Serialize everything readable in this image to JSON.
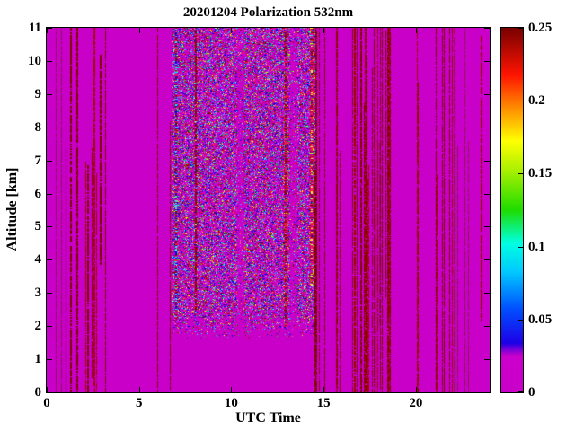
{
  "chart_data": {
    "type": "heatmap",
    "title": "20201204 Polarization 532nm",
    "xlabel": "UTC Time",
    "ylabel": "Altitude [km]",
    "x_range": [
      0,
      24
    ],
    "y_range": [
      0,
      11
    ],
    "x_ticks": [
      0,
      5,
      10,
      15,
      20
    ],
    "y_ticks": [
      0,
      1,
      2,
      3,
      4,
      5,
      6,
      7,
      8,
      9,
      10,
      11
    ],
    "grid": false,
    "legend": "none",
    "colorbar": {
      "position": "right",
      "range": [
        0,
        0.25
      ],
      "tick_values": [
        0,
        0.05,
        0.1,
        0.15,
        0.2,
        0.25
      ],
      "tick_labels": [
        "0",
        "0.05",
        "0.1",
        "0.15",
        "0.2",
        "0.25"
      ]
    },
    "colormap_stops": [
      [
        0.0,
        "#C800C8"
      ],
      [
        0.1,
        "#CC00CC"
      ],
      [
        0.135,
        "#1E00E6"
      ],
      [
        0.23,
        "#0050FF"
      ],
      [
        0.33,
        "#00C8FF"
      ],
      [
        0.41,
        "#00FFE0"
      ],
      [
        0.5,
        "#1EDC00"
      ],
      [
        0.61,
        "#AAF000"
      ],
      [
        0.69,
        "#FFFF00"
      ],
      [
        0.78,
        "#FF8C00"
      ],
      [
        0.87,
        "#FF1400"
      ],
      [
        1.0,
        "#780000"
      ]
    ],
    "background_value": 0,
    "description": "Lidar polarization time-height curtain: mostly uniform magenta (value ~0) background, a dense multicolor speckle band between ~06:50 and ~14:30 UTC from ~1.8 km to 11 km, and numerous thin dark-red vertical streaks clustered near 0-2.5, 14.5-18.7 and 21.3-24 UTC.",
    "render": {
      "seed": 7,
      "background_color": "#C800C8",
      "noise_band": {
        "x0": 6.8,
        "x1": 14.5,
        "y0": 1.6,
        "y1": 11,
        "base_density": 0.55,
        "fade_below": 2.6,
        "gap_columns": [
          10.5,
          13.35
        ],
        "palette": [
          [
            "#C800C8",
            0.26
          ],
          [
            "#E060E0",
            0.1
          ],
          [
            "#0000E6",
            0.16
          ],
          [
            "#3399FF",
            0.07
          ],
          [
            "#00FFFF",
            0.07
          ],
          [
            "#00CC33",
            0.06
          ],
          [
            "#CCFF00",
            0.02
          ],
          [
            "#FFFF00",
            0.03
          ],
          [
            "#FF8000",
            0.02
          ],
          [
            "#FF2000",
            0.06
          ],
          [
            "#8B0000",
            0.15
          ]
        ]
      },
      "streak_zones": [
        {
          "x0": 0.05,
          "x1": 2.6,
          "density": 0.22
        },
        {
          "x0": 2.6,
          "x1": 6.8,
          "density": 0.05
        },
        {
          "x0": 14.5,
          "x1": 16.3,
          "density": 0.3
        },
        {
          "x0": 16.3,
          "x1": 18.7,
          "density": 0.45
        },
        {
          "x0": 18.7,
          "x1": 21.3,
          "density": 0.07
        },
        {
          "x0": 21.3,
          "x1": 23.95,
          "density": 0.16
        }
      ],
      "streak_colors": [
        [
          "#7E0000",
          0.6
        ],
        [
          "#A00000",
          0.25
        ],
        [
          "#8B1A4B",
          0.15
        ]
      ],
      "accent_streaks": [
        {
          "x": 14.3,
          "y0": 3.2,
          "y1": 11,
          "colors": [
            [
              "#FF2000",
              0.45
            ],
            [
              "#FFFF00",
              0.2
            ],
            [
              "#8B0000",
              0.35
            ]
          ]
        },
        {
          "x": 6.95,
          "y0": 2.2,
          "y1": 11,
          "colors": [
            [
              "#0000E6",
              0.3
            ],
            [
              "#00FFFF",
              0.2
            ],
            [
              "#FF2000",
              0.2
            ],
            [
              "#8B0000",
              0.3
            ]
          ]
        },
        {
          "x": 12.9,
          "y0": 2.0,
          "y1": 11,
          "colors": [
            [
              "#8B0000",
              0.7
            ],
            [
              "#FF2000",
              0.3
            ]
          ]
        },
        {
          "x": 8.05,
          "y0": 2.5,
          "y1": 11,
          "colors": [
            [
              "#8B0000",
              0.8
            ],
            [
              "#A00000",
              0.2
            ]
          ]
        }
      ]
    }
  }
}
